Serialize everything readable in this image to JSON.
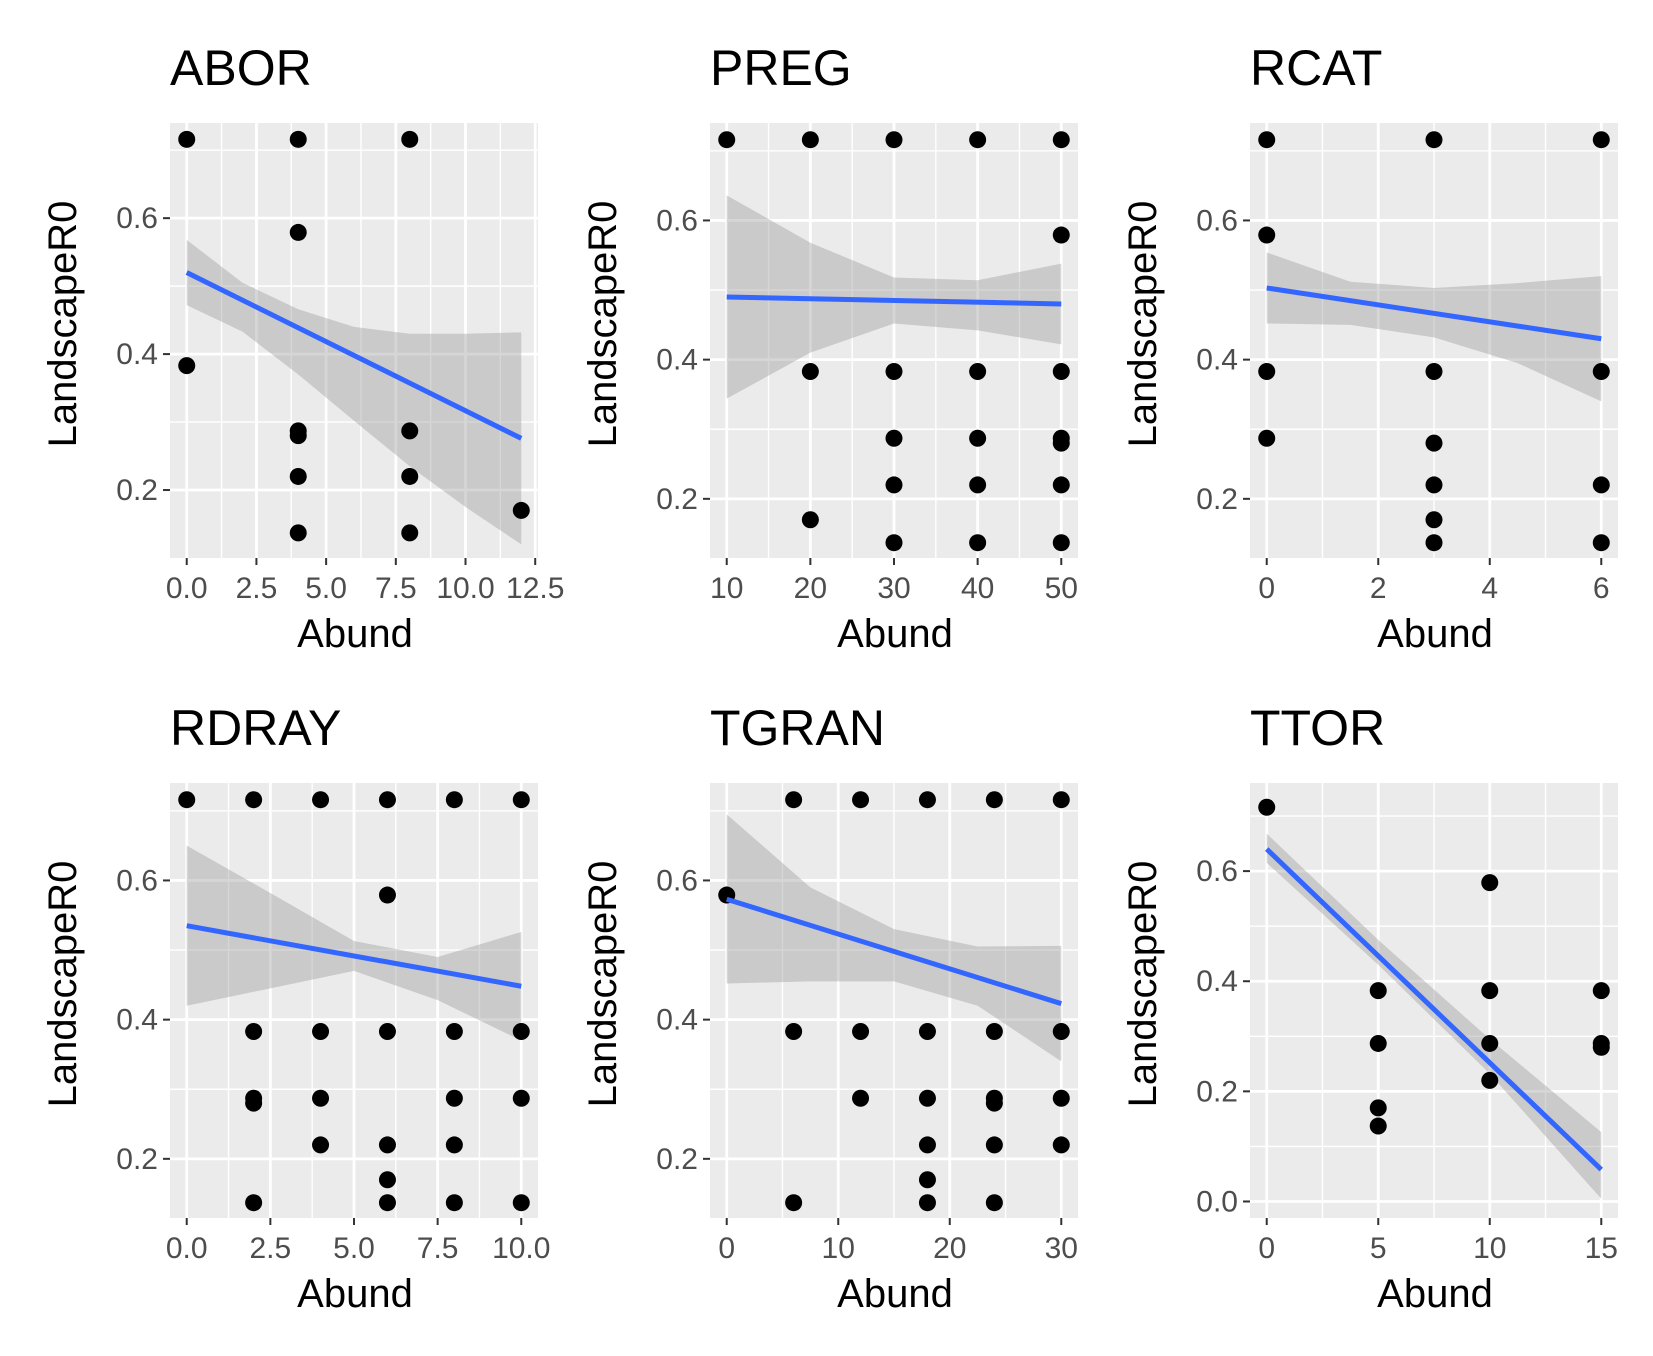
{
  "chart_data": [
    {
      "type": "scatter",
      "title": "ABOR",
      "xlabel": "Abund",
      "ylabel": "LandscapeR0",
      "xlim": [
        -0.6,
        12.6
      ],
      "ylim": [
        0.1,
        0.74
      ],
      "xticks": [
        0,
        2.5,
        5,
        7.5,
        10,
        12.5
      ],
      "xtick_labels": [
        "0.0",
        "2.5",
        "5.0",
        "7.5",
        "10.0",
        "12.5"
      ],
      "yticks": [
        0.2,
        0.4,
        0.6
      ],
      "ytick_labels": [
        "0.2",
        "0.4",
        "0.6"
      ],
      "points": [
        [
          0,
          0.716
        ],
        [
          4,
          0.716
        ],
        [
          8,
          0.716
        ],
        [
          4,
          0.579
        ],
        [
          0,
          0.383
        ],
        [
          4,
          0.287
        ],
        [
          4,
          0.28
        ],
        [
          8,
          0.287
        ],
        [
          4,
          0.22
        ],
        [
          8,
          0.22
        ],
        [
          4,
          0.137
        ],
        [
          8,
          0.137
        ],
        [
          12,
          0.17
        ]
      ],
      "fit": {
        "x": [
          0,
          12
        ],
        "y": [
          0.52,
          0.276
        ]
      },
      "band": {
        "x": [
          0,
          2,
          4,
          6,
          8,
          10,
          12
        ],
        "lower": [
          0.472,
          0.433,
          0.37,
          0.302,
          0.235,
          0.175,
          0.12
        ],
        "upper": [
          0.568,
          0.505,
          0.466,
          0.44,
          0.43,
          0.43,
          0.432
        ]
      },
      "grid": true
    },
    {
      "type": "scatter",
      "title": "PREG",
      "xlabel": "Abund",
      "ylabel": "LandscapeR0",
      "xlim": [
        8,
        52
      ],
      "ylim": [
        0.115,
        0.74
      ],
      "xticks": [
        10,
        20,
        30,
        40,
        50
      ],
      "xtick_labels": [
        "10",
        "20",
        "30",
        "40",
        "50"
      ],
      "yticks": [
        0.2,
        0.4,
        0.6
      ],
      "ytick_labels": [
        "0.2",
        "0.4",
        "0.6"
      ],
      "points": [
        [
          10,
          0.716
        ],
        [
          20,
          0.716
        ],
        [
          30,
          0.716
        ],
        [
          40,
          0.716
        ],
        [
          50,
          0.716
        ],
        [
          50,
          0.579
        ],
        [
          20,
          0.383
        ],
        [
          30,
          0.383
        ],
        [
          40,
          0.383
        ],
        [
          50,
          0.383
        ],
        [
          30,
          0.287
        ],
        [
          40,
          0.287
        ],
        [
          50,
          0.287
        ],
        [
          50,
          0.28
        ],
        [
          30,
          0.22
        ],
        [
          40,
          0.22
        ],
        [
          50,
          0.22
        ],
        [
          20,
          0.17
        ],
        [
          30,
          0.137
        ],
        [
          40,
          0.137
        ],
        [
          50,
          0.137
        ]
      ],
      "fit": {
        "x": [
          10,
          50
        ],
        "y": [
          0.49,
          0.48
        ]
      },
      "band": {
        "x": [
          10,
          20,
          30,
          40,
          50
        ],
        "lower": [
          0.344,
          0.41,
          0.452,
          0.442,
          0.422
        ],
        "upper": [
          0.636,
          0.568,
          0.518,
          0.514,
          0.538
        ]
      },
      "grid": true
    },
    {
      "type": "scatter",
      "title": "RCAT",
      "xlabel": "Abund",
      "ylabel": "LandscapeR0",
      "xlim": [
        -0.3,
        6.3
      ],
      "ylim": [
        0.115,
        0.74
      ],
      "xticks": [
        0,
        2,
        4,
        6
      ],
      "xtick_labels": [
        "0",
        "2",
        "4",
        "6"
      ],
      "yticks": [
        0.2,
        0.4,
        0.6
      ],
      "ytick_labels": [
        "0.2",
        "0.4",
        "0.6"
      ],
      "points": [
        [
          0,
          0.716
        ],
        [
          3,
          0.716
        ],
        [
          6,
          0.716
        ],
        [
          0,
          0.579
        ],
        [
          0,
          0.383
        ],
        [
          3,
          0.383
        ],
        [
          6,
          0.383
        ],
        [
          0,
          0.287
        ],
        [
          3,
          0.28
        ],
        [
          3,
          0.22
        ],
        [
          6,
          0.22
        ],
        [
          3,
          0.17
        ],
        [
          3,
          0.137
        ],
        [
          6,
          0.137
        ]
      ],
      "fit": {
        "x": [
          0,
          6
        ],
        "y": [
          0.503,
          0.43
        ]
      },
      "band": {
        "x": [
          0,
          1.5,
          3,
          4.5,
          6
        ],
        "lower": [
          0.452,
          0.45,
          0.432,
          0.395,
          0.34
        ],
        "upper": [
          0.554,
          0.512,
          0.503,
          0.51,
          0.52
        ]
      },
      "grid": true
    },
    {
      "type": "scatter",
      "title": "RDRAY",
      "xlabel": "Abund",
      "ylabel": "LandscapeR0",
      "xlim": [
        -0.5,
        10.5
      ],
      "ylim": [
        0.115,
        0.74
      ],
      "xticks": [
        0,
        2.5,
        5,
        7.5,
        10
      ],
      "xtick_labels": [
        "0.0",
        "2.5",
        "5.0",
        "7.5",
        "10.0"
      ],
      "yticks": [
        0.2,
        0.4,
        0.6
      ],
      "ytick_labels": [
        "0.2",
        "0.4",
        "0.6"
      ],
      "points": [
        [
          0,
          0.716
        ],
        [
          2,
          0.716
        ],
        [
          4,
          0.716
        ],
        [
          6,
          0.716
        ],
        [
          8,
          0.716
        ],
        [
          10,
          0.716
        ],
        [
          6,
          0.579
        ],
        [
          2,
          0.383
        ],
        [
          4,
          0.383
        ],
        [
          6,
          0.383
        ],
        [
          8,
          0.383
        ],
        [
          10,
          0.383
        ],
        [
          2,
          0.287
        ],
        [
          2,
          0.28
        ],
        [
          4,
          0.287
        ],
        [
          8,
          0.287
        ],
        [
          10,
          0.287
        ],
        [
          4,
          0.22
        ],
        [
          6,
          0.22
        ],
        [
          8,
          0.22
        ],
        [
          6,
          0.17
        ],
        [
          2,
          0.137
        ],
        [
          6,
          0.137
        ],
        [
          8,
          0.137
        ],
        [
          10,
          0.137
        ]
      ],
      "fit": {
        "x": [
          0,
          10
        ],
        "y": [
          0.535,
          0.448
        ]
      },
      "band": {
        "x": [
          0,
          2.5,
          5,
          7.5,
          10
        ],
        "lower": [
          0.42,
          0.445,
          0.47,
          0.428,
          0.37
        ],
        "upper": [
          0.65,
          0.582,
          0.513,
          0.49,
          0.526
        ]
      },
      "grid": true
    },
    {
      "type": "scatter",
      "title": "TGRAN",
      "xlabel": "Abund",
      "ylabel": "LandscapeR0",
      "xlim": [
        -1.5,
        31.5
      ],
      "ylim": [
        0.115,
        0.74
      ],
      "xticks": [
        0,
        10,
        20,
        30
      ],
      "xtick_labels": [
        "0",
        "10",
        "20",
        "30"
      ],
      "yticks": [
        0.2,
        0.4,
        0.6
      ],
      "ytick_labels": [
        "0.2",
        "0.4",
        "0.6"
      ],
      "points": [
        [
          6,
          0.716
        ],
        [
          12,
          0.716
        ],
        [
          18,
          0.716
        ],
        [
          24,
          0.716
        ],
        [
          30,
          0.716
        ],
        [
          0,
          0.579
        ],
        [
          6,
          0.383
        ],
        [
          12,
          0.383
        ],
        [
          18,
          0.383
        ],
        [
          24,
          0.383
        ],
        [
          30,
          0.383
        ],
        [
          12,
          0.287
        ],
        [
          18,
          0.287
        ],
        [
          24,
          0.287
        ],
        [
          24,
          0.28
        ],
        [
          30,
          0.287
        ],
        [
          18,
          0.22
        ],
        [
          24,
          0.22
        ],
        [
          30,
          0.22
        ],
        [
          18,
          0.17
        ],
        [
          6,
          0.137
        ],
        [
          18,
          0.137
        ],
        [
          24,
          0.137
        ]
      ],
      "fit": {
        "x": [
          0,
          30
        ],
        "y": [
          0.573,
          0.423
        ]
      },
      "band": {
        "x": [
          0,
          7.5,
          15,
          22.5,
          30
        ],
        "lower": [
          0.452,
          0.455,
          0.455,
          0.42,
          0.34
        ],
        "upper": [
          0.695,
          0.59,
          0.53,
          0.505,
          0.506
        ]
      },
      "grid": true
    },
    {
      "type": "scatter",
      "title": "TTOR",
      "xlabel": "Abund",
      "ylabel": "LandscapeR0",
      "xlim": [
        -0.75,
        15.75
      ],
      "ylim": [
        -0.03,
        0.76
      ],
      "xticks": [
        0,
        5,
        10,
        15
      ],
      "xtick_labels": [
        "0",
        "5",
        "10",
        "15"
      ],
      "yticks": [
        0,
        0.2,
        0.4,
        0.6
      ],
      "ytick_labels": [
        "0.0",
        "0.2",
        "0.4",
        "0.6"
      ],
      "points": [
        [
          0,
          0.716
        ],
        [
          10,
          0.579
        ],
        [
          5,
          0.383
        ],
        [
          10,
          0.383
        ],
        [
          15,
          0.383
        ],
        [
          5,
          0.287
        ],
        [
          10,
          0.287
        ],
        [
          15,
          0.287
        ],
        [
          15,
          0.28
        ],
        [
          10,
          0.22
        ],
        [
          5,
          0.17
        ],
        [
          5,
          0.137
        ]
      ],
      "fit": {
        "x": [
          0,
          15
        ],
        "y": [
          0.64,
          0.058
        ]
      },
      "band": {
        "x": [
          0,
          5,
          10,
          15
        ],
        "lower": [
          0.615,
          0.43,
          0.232,
          0.005
        ],
        "upper": [
          0.668,
          0.475,
          0.295,
          0.126
        ]
      },
      "grid": true
    }
  ]
}
